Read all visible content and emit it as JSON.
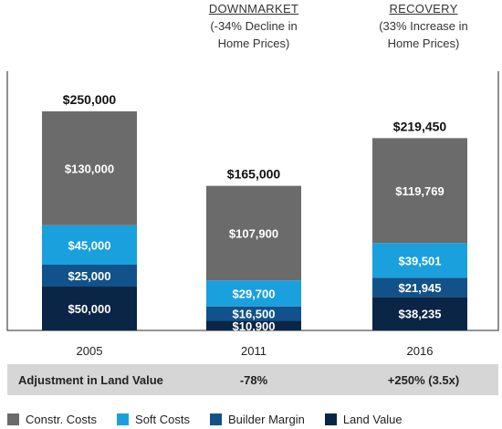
{
  "headers": [
    {
      "title": "",
      "line1": "",
      "line2": ""
    },
    {
      "title": "DOWNMARKET",
      "line1": "(-34% Decline in",
      "line2": "Home Prices)"
    },
    {
      "title": "RECOVERY",
      "line1": "(33% Increase in",
      "line2": "Home Prices)"
    }
  ],
  "adjustment": {
    "label": "Adjustment in Land Value",
    "values": [
      "",
      "-78%",
      "+250% (3.5x)"
    ]
  },
  "colors": {
    "constr": "#6b6b6b",
    "soft": "#1aa0dc",
    "margin": "#12528a",
    "land": "#0b2547",
    "frame": "#555555"
  },
  "chart_data": {
    "type": "bar",
    "stacked": true,
    "categories": [
      "2005",
      "2011",
      "2016"
    ],
    "series": [
      {
        "name": "Land Value",
        "values": [
          50000,
          10900,
          38235
        ],
        "labels": [
          "$50,000",
          "$10,900",
          "$38,235"
        ]
      },
      {
        "name": "Builder Margin",
        "values": [
          25000,
          16500,
          21945
        ],
        "labels": [
          "$25,000",
          "$16,500",
          "$21,945"
        ]
      },
      {
        "name": "Soft Costs",
        "values": [
          45000,
          29700,
          39501
        ],
        "labels": [
          "$45,000",
          "$29,700",
          "$39,501"
        ]
      },
      {
        "name": "Constr. Costs",
        "values": [
          130000,
          107900,
          119769
        ],
        "labels": [
          "$130,000",
          "$107,900",
          "$119,769"
        ]
      }
    ],
    "totals": [
      "$250,000",
      "$165,000",
      "$219,450"
    ],
    "legend_order": [
      "Constr. Costs",
      "Soft Costs",
      "Builder Margin",
      "Land Value"
    ],
    "ylim": [
      0,
      250000
    ],
    "grid": false,
    "legend_position": "bottom"
  }
}
